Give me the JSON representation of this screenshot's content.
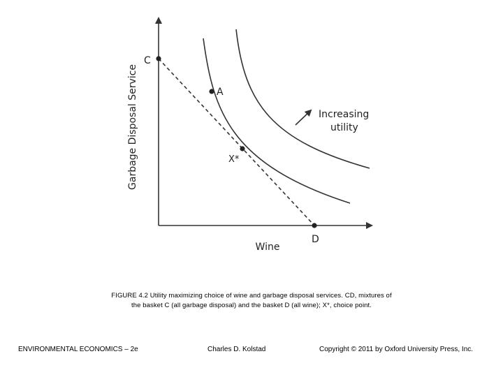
{
  "figure": {
    "y_axis_label": "Garbage Disposal Service",
    "x_axis_label": "Wine",
    "points": {
      "C": "C",
      "A": "A",
      "X": "X*",
      "D": "D"
    },
    "arrow_label_line1": "Increasing",
    "arrow_label_line2": "utility"
  },
  "caption": {
    "line1": "FIGURE 4.2 Utility maximizing choice of wine and garbage disposal services. CD, mixtures of",
    "line2": "the basket C (all garbage disposal) and the basket D (all wine); X*, choice point."
  },
  "footer": {
    "left": "ENVIRONMENTAL ECONOMICS – 2e",
    "middle": "Charles D. Kolstad",
    "right": "Copyright © 2011 by Oxford University Press, Inc."
  }
}
